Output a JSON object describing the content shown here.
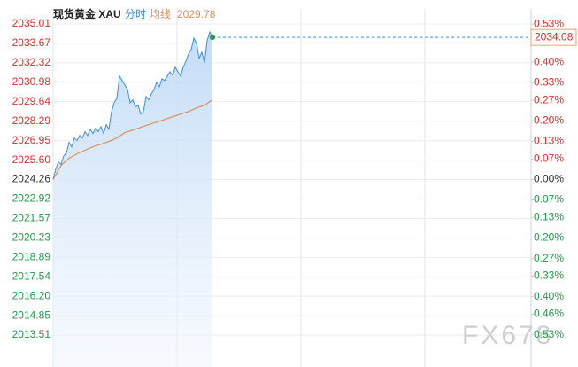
{
  "chart_data": {
    "type": "line",
    "title": "现货黄金 XAU",
    "legend_items": [
      "分时",
      "均线"
    ],
    "watermark": "FX678",
    "grid": true,
    "xlim": [
      0,
      180
    ],
    "ylim": [
      2011.31,
      2036.05
    ],
    "yticks": [
      2035.01,
      2033.67,
      2032.32,
      2030.98,
      2029.64,
      2028.29,
      2026.95,
      {
        "value": 2025.6,
        "label": "2025.60"
      },
      2024.26,
      2022.92,
      2021.57,
      2020.23,
      2018.89,
      2017.54,
      {
        "value": 2016.2,
        "label": "2016.20"
      },
      2014.85,
      2013.51
    ],
    "y2lim": [
      -0.64,
      0.582
    ],
    "y2ticks": [
      {
        "value": 0.53,
        "label": "0.53%"
      },
      {
        "value": 0.4,
        "label": "0.40%"
      },
      {
        "value": 0.33,
        "label": "0.33%"
      },
      {
        "value": 0.27,
        "label": "0.27%"
      },
      {
        "value": 0.2,
        "label": "0.20%"
      },
      {
        "value": 0.13,
        "label": "0.13%"
      },
      {
        "value": 0.07,
        "label": "0.07%"
      },
      {
        "value": 0,
        "label": "0.00%"
      },
      {
        "value": -0.07,
        "label": "0.07%"
      },
      {
        "value": -0.13,
        "label": "0.13%"
      },
      {
        "value": -0.2,
        "label": "0.20%"
      },
      {
        "value": -0.27,
        "label": "0.27%"
      },
      {
        "value": -0.33,
        "label": "0.33%"
      },
      {
        "value": -0.4,
        "label": "0.40%"
      },
      {
        "value": -0.46,
        "label": "0.46%"
      },
      {
        "value": -0.53,
        "label": "0.53%"
      }
    ],
    "series": [
      {
        "name": "分时",
        "color": "#3a8ee6",
        "values": [
          2024.26,
          2024.99,
          2025.48,
          2025.3,
          2025.91,
          2026.09,
          2026.83,
          2026.52,
          2027.13,
          2026.95,
          2027.31,
          2027.13,
          2027.56,
          2027.31,
          2027.74,
          2027.44,
          2027.8,
          2027.56,
          2027.92,
          2027.44,
          2028.05,
          2027.74,
          2028.96,
          2029.57,
          2029.88,
          2031.41,
          2031.1,
          2030.8,
          2030.49,
          2029.57,
          2029.76,
          2029.27,
          2029.39,
          2028.78,
          2028.96,
          2030.0,
          2029.76,
          2030.18,
          2030.49,
          2030.98,
          2030.67,
          2031.22,
          2031.1,
          2031.41,
          2031.71,
          2031.47,
          2032.02,
          2031.71,
          2031.41,
          2032.02,
          2032.45,
          2032.93,
          2033.24,
          2034.03,
          2033.67,
          2032.63,
          2033.06,
          2032.32,
          2033.85,
          2034.46,
          2034.08
        ]
      },
      {
        "name": "均线",
        "color": "#dc8f5a",
        "x": [
          0,
          3,
          6,
          9,
          12,
          15,
          18,
          21,
          24,
          27,
          30,
          33,
          36,
          39,
          42,
          45,
          48,
          51,
          54,
          57,
          60
        ],
        "values": [
          2024.26,
          2025.24,
          2025.73,
          2026.03,
          2026.28,
          2026.52,
          2026.7,
          2026.89,
          2027.13,
          2027.5,
          2027.68,
          2027.86,
          2028.05,
          2028.23,
          2028.41,
          2028.6,
          2028.78,
          2028.96,
          2029.21,
          2029.39,
          2029.78
        ]
      }
    ]
  }
}
